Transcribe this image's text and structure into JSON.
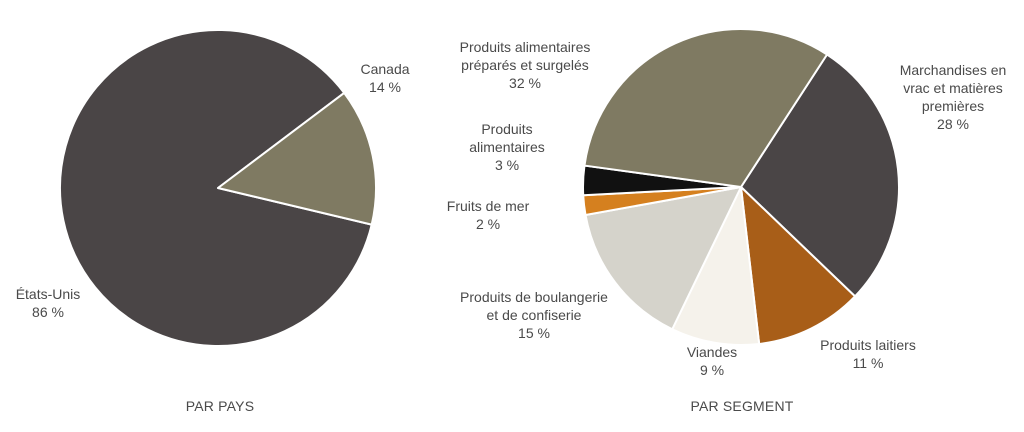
{
  "chart_data": [
    {
      "type": "pie",
      "title": "PAR PAYS",
      "slices": [
        {
          "name": "États-Unis",
          "value": 86,
          "value_label": "86 %",
          "color": "#4a4546"
        },
        {
          "name": "Canada",
          "value": 14,
          "value_label": "14 %",
          "color": "#7f7a62"
        }
      ]
    },
    {
      "type": "pie",
      "title": "PAR SEGMENT",
      "slices": [
        {
          "name": "Marchandises en vrac et matières premières",
          "value": 28,
          "value_label": "28 %",
          "color": "#4a4546"
        },
        {
          "name": "Produits laitiers",
          "value": 11,
          "value_label": "11 %",
          "color": "#a85e18"
        },
        {
          "name": "Viandes",
          "value": 9,
          "value_label": "9 %",
          "color": "#f5f2eb"
        },
        {
          "name": "Produits de boulangerie et de confiserie",
          "value": 15,
          "value_label": "15 %",
          "color": "#d5d3cb"
        },
        {
          "name": "Fruits de mer",
          "value": 2,
          "value_label": "2 %",
          "color": "#d5801f"
        },
        {
          "name": "Produits alimentaires",
          "value": 3,
          "value_label": "3 %",
          "color": "#111111"
        },
        {
          "name": "Produits alimentaires préparés et surgelés",
          "value": 32,
          "value_label": "32 %",
          "color": "#7f7a62"
        }
      ]
    }
  ]
}
